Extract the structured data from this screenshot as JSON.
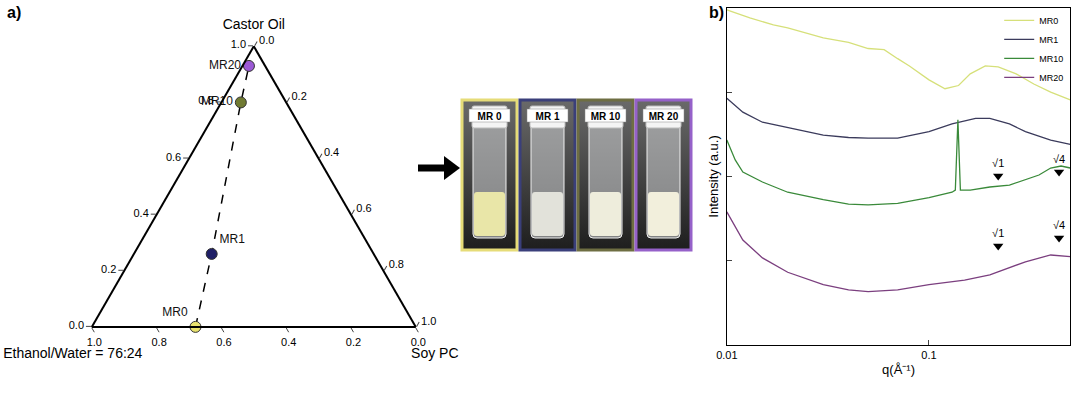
{
  "chart_data": [
    {
      "type": "ternary",
      "title": "a)",
      "labels": {
        "a": "Castor Oil",
        "b": "Ethanol/Water = 76:24",
        "c": "Soy PC"
      },
      "ticks": [
        {
          "value": 0,
          "label": "0.0"
        },
        0.2,
        0.4,
        0.6,
        0.8,
        {
          "value": 1,
          "label": "1.0"
        }
      ],
      "points": {
        "names": [
          "MR0",
          "MR1",
          "MR10",
          "MR20"
        ],
        "a": [
          0,
          0.26,
          0.8,
          0.93
        ],
        "b": [
          0.68,
          0.5,
          0.14,
          0.05
        ],
        "c": [
          0.32,
          0.24,
          0.06,
          0.02
        ],
        "colors": [
          "#e8e26e",
          "#1f1f66",
          "#707a32",
          "#9b59d6"
        ]
      },
      "line_style": "dashed",
      "marker": "circle",
      "grid": false
    },
    {
      "type": "line",
      "title": "b)",
      "x_label": "q(Å⁻¹)",
      "y_label": "Intensity (a.u.)",
      "log": true,
      "grid": false,
      "tick_labels": "x",
      "legend": "upper right",
      "xlim": [
        0.01,
        0.5
      ],
      "ylim": [
        0.001,
        10
      ],
      "xticks": [
        0.01,
        0.1
      ],
      "yticks": [
        0.01,
        0.1,
        1
      ],
      "series": [
        {
          "name": "MR0",
          "color": "#d6e07a",
          "x": [
            0.01,
            0.013,
            0.017,
            0.02,
            0.03,
            0.04,
            0.05,
            0.06,
            0.07,
            0.08,
            0.1,
            0.12,
            0.14,
            0.16,
            0.19,
            0.22,
            0.27,
            0.33,
            0.4,
            0.5
          ],
          "values": [
            9.5,
            7.6,
            6.3,
            5.8,
            4.4,
            3.9,
            3.3,
            3.2,
            2.5,
            2.05,
            1.4,
            1.1,
            1.2,
            1.65,
            2.05,
            2.0,
            1.65,
            1.25,
            1.0,
            0.81
          ]
        },
        {
          "name": "MR1",
          "color": "#3b3b5c",
          "x": [
            0.01,
            0.012,
            0.015,
            0.02,
            0.03,
            0.04,
            0.05,
            0.07,
            0.1,
            0.13,
            0.17,
            0.2,
            0.25,
            0.3,
            0.4,
            0.5
          ],
          "values": [
            0.85,
            0.58,
            0.44,
            0.38,
            0.31,
            0.29,
            0.285,
            0.285,
            0.34,
            0.42,
            0.49,
            0.49,
            0.42,
            0.34,
            0.27,
            0.24
          ]
        },
        {
          "name": "MR10",
          "color": "#3a8a3a",
          "x": [
            0.01,
            0.011,
            0.012,
            0.015,
            0.02,
            0.03,
            0.04,
            0.05,
            0.07,
            0.1,
            0.13,
            0.135,
            0.139,
            0.143,
            0.16,
            0.2,
            0.25,
            0.3,
            0.35,
            0.4,
            0.45,
            0.5
          ],
          "values": [
            0.27,
            0.157,
            0.113,
            0.086,
            0.065,
            0.053,
            0.047,
            0.046,
            0.048,
            0.056,
            0.065,
            0.069,
            0.47,
            0.069,
            0.069,
            0.075,
            0.079,
            0.091,
            0.104,
            0.126,
            0.133,
            0.126
          ]
        },
        {
          "name": "MR20",
          "color": "#7b3f7f",
          "x": [
            0.01,
            0.012,
            0.015,
            0.02,
            0.03,
            0.04,
            0.05,
            0.07,
            0.1,
            0.15,
            0.2,
            0.25,
            0.3,
            0.4,
            0.5
          ],
          "values": [
            0.038,
            0.0176,
            0.0108,
            0.0073,
            0.0052,
            0.0045,
            0.0043,
            0.0045,
            0.0052,
            0.0059,
            0.0068,
            0.0082,
            0.0097,
            0.0117,
            0.0112
          ]
        }
      ],
      "peaks": [
        {
          "series": "MR10",
          "marker": "triangle-down",
          "x": [
            0.22,
            0.44
          ],
          "y": [
            0.101,
            0.113
          ],
          "labels": [
            "√1",
            "√4"
          ]
        },
        {
          "series": "MR20",
          "marker": "triangle-down",
          "x": [
            0.22,
            0.44
          ],
          "y": [
            0.015,
            0.0186
          ],
          "labels": [
            "√1",
            "√4"
          ]
        }
      ]
    }
  ],
  "photos": {
    "labels": [
      "MR 0",
      "MR 1",
      "MR 10",
      "MR 20"
    ],
    "colors": [
      "#e6dc78",
      "#3a3f7a",
      "#6e6e42",
      "#9561c9"
    ]
  }
}
